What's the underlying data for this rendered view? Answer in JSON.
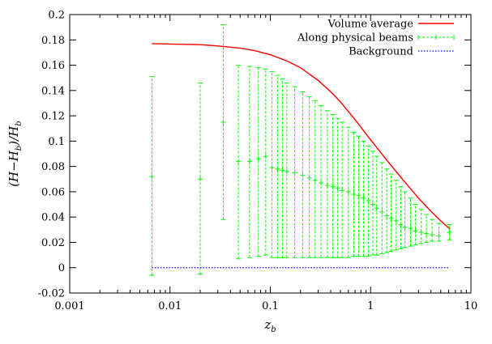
{
  "chart_data": {
    "type": "line",
    "xscale": "log",
    "xlim": [
      0.001,
      10
    ],
    "ylim": [
      -0.02,
      0.2
    ],
    "xticks": [
      "0.001",
      "0.01",
      "0.1",
      "1",
      "10"
    ],
    "yticks": [
      "-0.02",
      "0",
      "0.02",
      "0.04",
      "0.06",
      "0.08",
      "0.1",
      "0.12",
      "0.14",
      "0.16",
      "0.18",
      "0.2"
    ],
    "xlabel": "z_b",
    "ylabel": "(H−H_b)/H_b",
    "grid": false,
    "legend_position": "top-right",
    "series": [
      {
        "name": "Volume average",
        "color": "#ff0000",
        "style": "solid",
        "x": [
          0.0066,
          0.01,
          0.02,
          0.03,
          0.05,
          0.07,
          0.1,
          0.15,
          0.2,
          0.3,
          0.4,
          0.5,
          0.7,
          1.0,
          1.5,
          2.0,
          3.0,
          4.0,
          5.0,
          6.2
        ],
        "y": [
          0.177,
          0.1767,
          0.1762,
          0.1752,
          0.1735,
          0.1715,
          0.1683,
          0.163,
          0.158,
          0.148,
          0.139,
          0.131,
          0.117,
          0.101,
          0.0835,
          0.0715,
          0.055,
          0.0445,
          0.037,
          0.0305
        ]
      },
      {
        "name": "Along physical beams",
        "color": "#00ff00",
        "style": "dashed-errorbars",
        "x": [
          0.0066,
          0.02,
          0.034,
          0.048,
          0.062,
          0.076,
          0.09,
          0.104,
          0.118,
          0.132,
          0.146,
          0.175,
          0.21,
          0.245,
          0.28,
          0.32,
          0.37,
          0.42,
          0.47,
          0.52,
          0.6,
          0.68,
          0.76,
          0.85,
          0.95,
          1.05,
          1.15,
          1.3,
          1.45,
          1.6,
          1.8,
          2.0,
          2.2,
          2.5,
          2.8,
          3.2,
          3.6,
          4.1,
          4.8,
          6.1
        ],
        "y": [
          0.072,
          0.07,
          0.115,
          0.084,
          0.084,
          0.086,
          0.088,
          0.079,
          0.078,
          0.077,
          0.076,
          0.075,
          0.073,
          0.071,
          0.069,
          0.067,
          0.065,
          0.064,
          0.063,
          0.061,
          0.06,
          0.058,
          0.057,
          0.055,
          0.053,
          0.05,
          0.047,
          0.044,
          0.041,
          0.039,
          0.037,
          0.034,
          0.032,
          0.031,
          0.029,
          0.028,
          0.027,
          0.026,
          0.025,
          0.028
        ],
        "yerr_low": [
          -0.006,
          -0.005,
          0.038,
          0.007,
          0.008,
          0.009,
          0.01,
          0.008,
          0.008,
          0.008,
          0.008,
          0.008,
          0.008,
          0.008,
          0.008,
          0.008,
          0.008,
          0.008,
          0.008,
          0.008,
          0.008,
          0.009,
          0.009,
          0.009,
          0.009,
          0.01,
          0.01,
          0.011,
          0.012,
          0.013,
          0.014,
          0.015,
          0.016,
          0.017,
          0.018,
          0.019,
          0.02,
          0.021,
          0.021,
          0.022
        ],
        "yerr_high": [
          0.151,
          0.146,
          0.192,
          0.16,
          0.159,
          0.158,
          0.157,
          0.155,
          0.152,
          0.149,
          0.146,
          0.143,
          0.139,
          0.135,
          0.132,
          0.128,
          0.124,
          0.121,
          0.118,
          0.115,
          0.111,
          0.107,
          0.104,
          0.1,
          0.096,
          0.092,
          0.088,
          0.083,
          0.078,
          0.074,
          0.069,
          0.064,
          0.06,
          0.055,
          0.05,
          0.046,
          0.042,
          0.038,
          0.035,
          0.034
        ]
      },
      {
        "name": "Background",
        "color": "#0000ff",
        "style": "dotted",
        "x": [
          0.0066,
          6.1
        ],
        "y": [
          0,
          0
        ]
      }
    ]
  }
}
